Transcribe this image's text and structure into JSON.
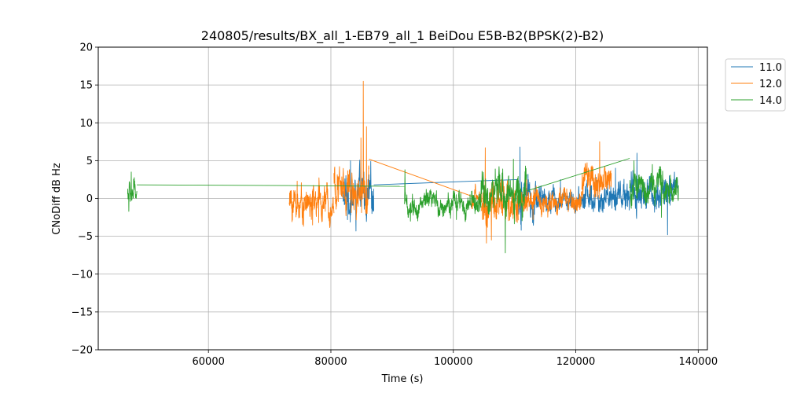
{
  "chart_data": {
    "type": "line",
    "title": "240805/results/BX_all_1-EB79_all_1 BeiDou E5B-B2(BPSK(2)-B2)",
    "xlabel": "Time (s)",
    "ylabel": "CNoDiff dB Hz",
    "xlim": [
      42000,
      141500
    ],
    "ylim": [
      -20,
      20
    ],
    "xticks": [
      60000,
      80000,
      100000,
      120000,
      140000
    ],
    "xtick_labels": [
      "60000",
      "80000",
      "100000",
      "120000",
      "140000"
    ],
    "yticks": [
      -20,
      -15,
      -10,
      -5,
      0,
      5,
      10,
      15,
      20
    ],
    "ytick_labels": [
      "−20",
      "−15",
      "−10",
      "−5",
      "0",
      "5",
      "10",
      "15",
      "20"
    ],
    "grid": true,
    "legend": {
      "position": "outside-top-right"
    },
    "series": [
      {
        "name": "11.0",
        "color": "#1f77b4",
        "segments": [
          {
            "x_range": [
              82000,
              87000
            ],
            "center": 0.0,
            "amplitude": 2.6,
            "spikes": [
              [
                83200,
                5.0
              ],
              [
                84100,
                -4.3
              ],
              [
                85400,
                3.5
              ]
            ]
          },
          {
            "bridge": [
              [
                87000,
                1.8
              ],
              [
                110500,
                2.5
              ]
            ]
          },
          {
            "x_range": [
              110500,
              113500
            ],
            "center": 0.5,
            "amplitude": 2.5,
            "spikes": [
              [
                110900,
                6.8
              ],
              [
                111100,
                -4.2
              ]
            ]
          },
          {
            "x_range": [
              113500,
              121500
            ],
            "center": -0.2,
            "amplitude": 1.3,
            "spikes": [
              [
                117500,
                2.5
              ]
            ]
          },
          {
            "x_range": [
              121500,
              135500
            ],
            "center": 0.8,
            "amplitude": 2.0,
            "spikes": [
              [
                126500,
                4.0
              ],
              [
                130000,
                6.0
              ],
              [
                135000,
                -4.8
              ]
            ]
          },
          {
            "x_range": [
              135500,
              136700
            ],
            "center": 1.5,
            "amplitude": 1.5
          }
        ]
      },
      {
        "name": "12.0",
        "color": "#ff7f0e",
        "segments": [
          {
            "x_range": [
              73200,
              80500
            ],
            "center": -0.6,
            "amplitude": 2.0,
            "spikes": [
              [
                74500,
                2.3
              ],
              [
                77000,
                -3.5
              ],
              [
                78000,
                -3.2
              ]
            ]
          },
          {
            "x_range": [
              80500,
              86200
            ],
            "center": 1.3,
            "amplitude": 2.5,
            "spikes": [
              [
                85300,
                15.5
              ],
              [
                85800,
                9.5
              ],
              [
                84900,
                8.0
              ]
            ]
          },
          {
            "bridge": [
              [
                86200,
                5.2
              ],
              [
                103000,
                0.3
              ]
            ]
          },
          {
            "x_range": [
              103000,
              104600
            ],
            "center": 0.0,
            "amplitude": 1.5
          },
          {
            "x_range": [
              104600,
              110600
            ],
            "center": -0.8,
            "amplitude": 2.8,
            "spikes": [
              [
                105200,
                6.7
              ],
              [
                105400,
                -5.9
              ],
              [
                106200,
                -5.5
              ]
            ]
          },
          {
            "x_range": [
              110600,
              121000
            ],
            "center": -0.4,
            "amplitude": 1.4,
            "spikes": [
              [
                112000,
                2.5
              ],
              [
                113000,
                -2.8
              ]
            ]
          },
          {
            "x_range": [
              121000,
              125800
            ],
            "center": 2.2,
            "amplitude": 2.0,
            "spikes": [
              [
                123900,
                7.5
              ],
              [
                121800,
                4.0
              ]
            ]
          }
        ]
      },
      {
        "name": "14.0",
        "color": "#2ca02c",
        "segments": [
          {
            "x_range": [
              46800,
              48300
            ],
            "center": 0.7,
            "amplitude": 1.6,
            "spikes": [
              [
                47400,
                3.5
              ],
              [
                47000,
                -1.7
              ]
            ]
          },
          {
            "bridge": [
              [
                48300,
                1.8
              ],
              [
                73000,
                1.7
              ]
            ]
          },
          {
            "bridge": [
              [
                73000,
                1.7
              ],
              [
                92000,
                1.6
              ]
            ]
          },
          {
            "x_range": [
              92000,
              104500
            ],
            "center": -0.8,
            "amplitude": 1.3,
            "spikes": [
              [
                92100,
                3.8
              ],
              [
                93000,
                -3.0
              ],
              [
                100500,
                -2.8
              ]
            ]
          },
          {
            "x_range": [
              104500,
              112000
            ],
            "center": 0.6,
            "amplitude": 2.5,
            "spikes": [
              [
                108500,
                -7.2
              ],
              [
                109800,
                5.2
              ],
              [
                107500,
                3.7
              ]
            ]
          },
          {
            "bridge": [
              [
                112000,
                1.0
              ],
              [
                128800,
                5.3
              ]
            ]
          },
          {
            "x_range": [
              128800,
              134800
            ],
            "center": 1.6,
            "amplitude": 2.0,
            "spikes": [
              [
                129500,
                5.0
              ],
              [
                132500,
                4.5
              ],
              [
                134000,
                -2.5
              ]
            ]
          },
          {
            "x_range": [
              134800,
              136800
            ],
            "center": 1.3,
            "amplitude": 1.7
          }
        ]
      }
    ]
  }
}
